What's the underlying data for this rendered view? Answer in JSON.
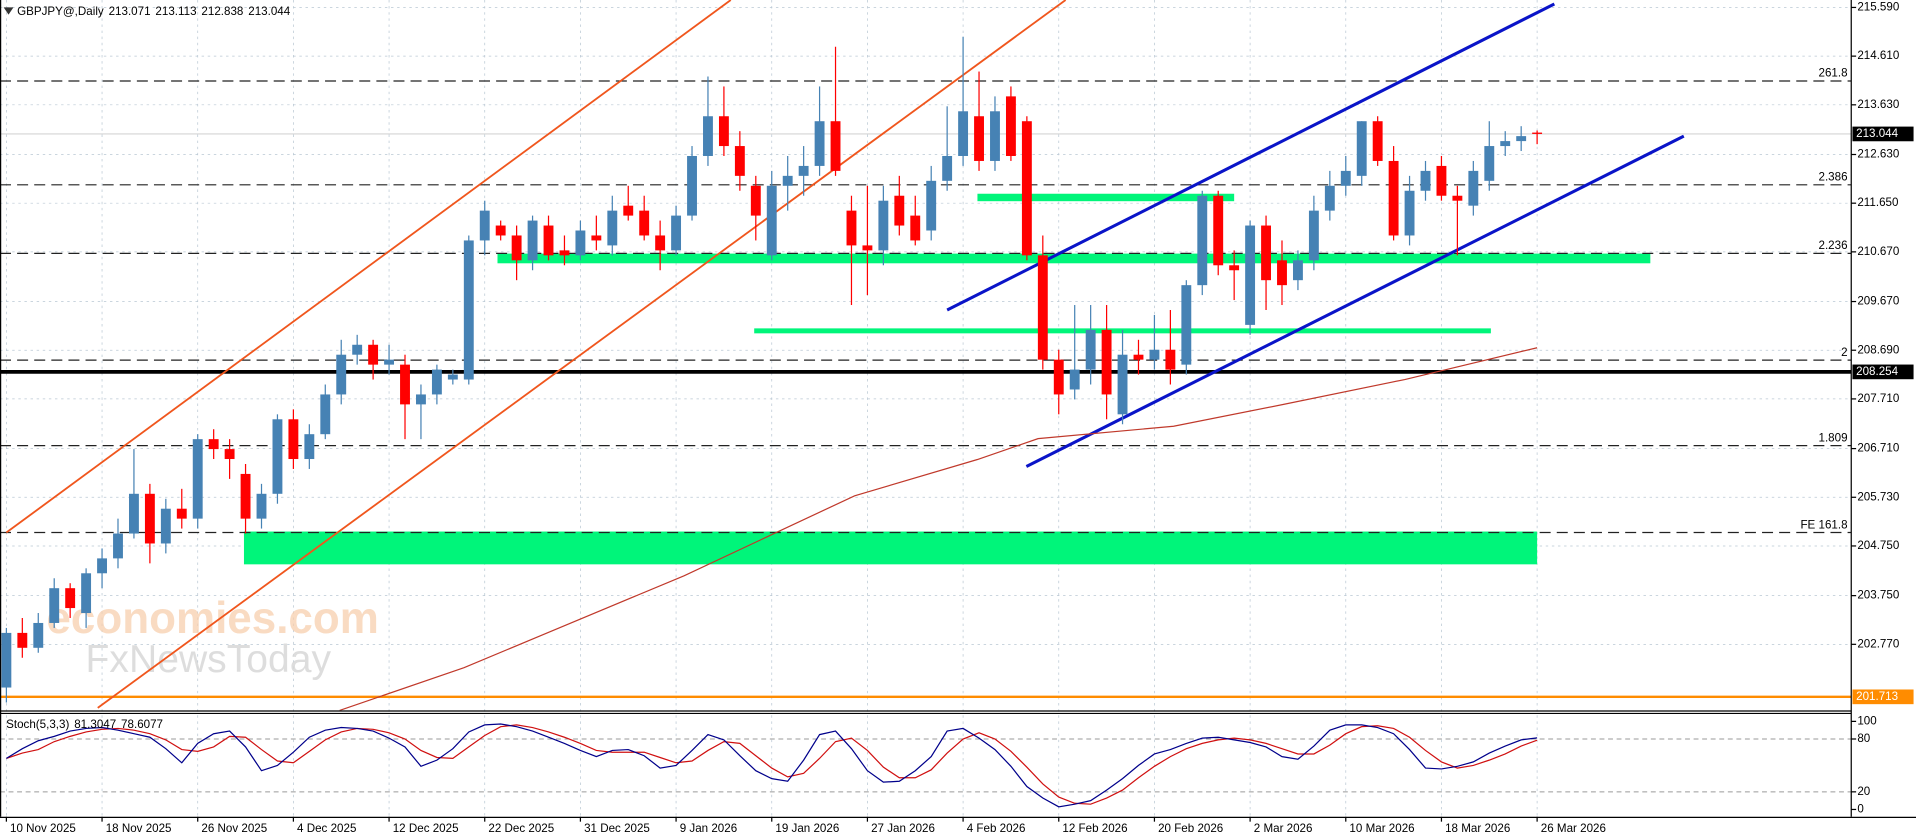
{
  "chart_data": {
    "type": "candlestick",
    "title": "GBPJPY@,Daily",
    "open": [
      201.9,
      203.0,
      202.7,
      203.2,
      203.9,
      203.4,
      204.2,
      204.5,
      205.0,
      205.8,
      204.8,
      205.5,
      205.3,
      206.9,
      206.7,
      206.2,
      205.3,
      205.8,
      207.3,
      206.5,
      207.0,
      207.8,
      208.6,
      208.8,
      208.4,
      208.4,
      207.6,
      207.8,
      208.1,
      208.1,
      210.9,
      211.2,
      211.0,
      210.5,
      211.2,
      210.7,
      210.6,
      211.0,
      210.8,
      211.6,
      211.5,
      211.0,
      210.7,
      211.4,
      212.6,
      213.4,
      212.8,
      212.0,
      210.6,
      212.0,
      212.2,
      212.4,
      213.3,
      211.5,
      210.8,
      210.7,
      211.8,
      211.4,
      211.1,
      212.1,
      212.6,
      213.4,
      212.5,
      213.8,
      213.3,
      210.6,
      208.5,
      207.9,
      208.3,
      209.1,
      207.4,
      208.6,
      208.5,
      208.7,
      208.4,
      210.0,
      211.8,
      210.4,
      209.2,
      211.2,
      210.5,
      210.1,
      210.5,
      211.5,
      212.0,
      212.2,
      213.3,
      212.5,
      211.0,
      211.9,
      212.4,
      211.8,
      211.6,
      212.1,
      212.8,
      212.9,
      213.071
    ],
    "high": [
      203.1,
      203.3,
      203.4,
      204.1,
      204.0,
      204.3,
      204.7,
      205.3,
      206.7,
      206.0,
      205.7,
      205.9,
      207.0,
      207.1,
      206.9,
      206.4,
      206.0,
      207.4,
      207.5,
      207.2,
      208.0,
      208.9,
      209.0,
      208.9,
      208.8,
      208.6,
      208.0,
      208.4,
      208.3,
      211.0,
      211.7,
      211.3,
      211.2,
      211.4,
      211.4,
      211.0,
      211.3,
      211.4,
      211.8,
      212.0,
      211.8,
      211.3,
      211.6,
      212.8,
      214.2,
      214.0,
      213.1,
      212.2,
      212.3,
      212.6,
      212.8,
      214.0,
      214.8,
      211.8,
      212.0,
      212.0,
      212.2,
      211.8,
      212.4,
      213.6,
      215.0,
      214.3,
      213.8,
      214.0,
      213.4,
      211.0,
      208.7,
      209.6,
      209.6,
      209.6,
      209.1,
      208.9,
      209.4,
      209.5,
      210.1,
      211.9,
      211.9,
      210.7,
      211.3,
      211.4,
      210.9,
      210.7,
      211.8,
      212.3,
      212.6,
      213.3,
      213.4,
      212.8,
      212.2,
      212.5,
      212.6,
      212.0,
      212.5,
      213.3,
      213.1,
      213.2,
      213.113
    ],
    "low": [
      201.6,
      202.5,
      202.6,
      203.1,
      203.3,
      203.1,
      203.9,
      204.3,
      204.9,
      204.4,
      204.6,
      205.1,
      205.1,
      206.5,
      206.1,
      205.0,
      205.1,
      205.6,
      206.3,
      206.3,
      206.9,
      207.6,
      208.4,
      208.1,
      208.2,
      206.9,
      206.9,
      207.6,
      208.0,
      208.0,
      210.6,
      210.9,
      210.1,
      210.3,
      210.5,
      210.4,
      210.5,
      210.7,
      210.6,
      211.3,
      210.9,
      210.3,
      210.6,
      211.3,
      212.4,
      212.6,
      211.9,
      210.9,
      210.5,
      211.5,
      211.8,
      212.2,
      212.2,
      209.6,
      209.8,
      210.4,
      211.0,
      210.8,
      210.9,
      211.9,
      212.4,
      212.3,
      212.3,
      212.5,
      210.5,
      208.3,
      207.4,
      207.7,
      208.0,
      207.3,
      207.2,
      208.2,
      208.3,
      208.0,
      208.2,
      209.8,
      210.2,
      209.7,
      209.0,
      209.5,
      209.6,
      209.9,
      210.3,
      211.3,
      211.8,
      212.0,
      212.4,
      210.9,
      210.8,
      211.7,
      211.7,
      210.6,
      211.4,
      211.9,
      212.6,
      212.7,
      212.838
    ],
    "close": [
      203.0,
      202.7,
      203.2,
      203.9,
      203.5,
      204.2,
      204.5,
      205.0,
      205.8,
      204.8,
      205.5,
      205.3,
      206.9,
      206.7,
      206.5,
      205.3,
      205.8,
      207.3,
      206.5,
      207.0,
      207.8,
      208.6,
      208.8,
      208.4,
      208.5,
      207.6,
      207.8,
      208.3,
      208.2,
      210.9,
      211.5,
      211.0,
      210.5,
      211.3,
      210.6,
      210.6,
      211.1,
      210.9,
      211.5,
      211.4,
      211.0,
      210.7,
      211.4,
      212.6,
      213.4,
      212.8,
      212.2,
      211.4,
      212.0,
      212.2,
      212.4,
      213.3,
      212.3,
      210.8,
      210.7,
      211.7,
      211.2,
      210.9,
      212.1,
      212.6,
      213.5,
      212.5,
      213.5,
      212.6,
      210.6,
      208.5,
      207.8,
      208.3,
      209.1,
      207.8,
      208.6,
      208.5,
      208.7,
      208.3,
      210.0,
      211.8,
      210.4,
      210.3,
      211.2,
      210.1,
      210.0,
      210.5,
      211.5,
      212.0,
      212.3,
      213.3,
      212.5,
      211.0,
      211.9,
      212.3,
      211.8,
      211.7,
      212.3,
      212.8,
      212.9,
      213.0,
      213.044
    ],
    "up_color": "#4682b4",
    "down_color": "#ff0000",
    "xlim": [
      -0.4,
      115.7
    ],
    "xticks": [
      {
        "value": 0,
        "label": "10 Nov 2025"
      },
      {
        "value": 6,
        "label": "18 Nov 2025"
      },
      {
        "value": 12,
        "label": "26 Nov 2025"
      },
      {
        "value": 18,
        "label": "4 Dec 2025"
      },
      {
        "value": 24,
        "label": "12 Dec 2025"
      },
      {
        "value": 30,
        "label": "22 Dec 2025"
      },
      {
        "value": 36,
        "label": "31 Dec 2025"
      },
      {
        "value": 42,
        "label": "9 Jan 2026"
      },
      {
        "value": 48,
        "label": "19 Jan 2026"
      },
      {
        "value": 54,
        "label": "27 Jan 2026"
      },
      {
        "value": 60,
        "label": "4 Feb 2026"
      },
      {
        "value": 66,
        "label": "12 Feb 2026"
      },
      {
        "value": 72,
        "label": "20 Feb 2026"
      },
      {
        "value": 78,
        "label": "2 Mar 2026"
      },
      {
        "value": 84,
        "label": "10 Mar 2026"
      },
      {
        "value": 90,
        "label": "18 Mar 2026"
      },
      {
        "value": 96,
        "label": "26 Mar 2026"
      }
    ],
    "ylim": [
      201.44,
      215.74
    ],
    "yticks": [
      {
        "value": 215.59,
        "label": "215.590"
      },
      {
        "value": 214.61,
        "label": "214.610"
      },
      {
        "value": 213.63,
        "label": "213.630"
      },
      {
        "value": 212.63,
        "label": "212.630"
      },
      {
        "value": 211.65,
        "label": "211.650"
      },
      {
        "value": 210.67,
        "label": "210.670"
      },
      {
        "value": 209.67,
        "label": "209.670"
      },
      {
        "value": 208.69,
        "label": "208.690"
      },
      {
        "value": 207.71,
        "label": "207.710"
      },
      {
        "value": 206.71,
        "label": "206.710"
      },
      {
        "value": 205.73,
        "label": "205.730"
      },
      {
        "value": 204.75,
        "label": "204.750"
      },
      {
        "value": 203.75,
        "label": "203.750"
      },
      {
        "value": 202.77,
        "label": "202.770"
      }
    ],
    "grid": true,
    "price_lines": [
      {
        "value": 208.254,
        "color": "#000000"
      },
      {
        "value": 201.713,
        "color": "#ff8c00"
      }
    ],
    "fib_levels": [
      {
        "value": 214.11,
        "label": "261.8"
      },
      {
        "value": 212.02,
        "label": "2.386"
      },
      {
        "value": 210.64,
        "label": "2.236"
      },
      {
        "value": 208.49,
        "label": "2"
      },
      {
        "value": 206.77,
        "label": "1.809"
      },
      {
        "value": 205.02,
        "label": "FE 161.8"
      }
    ],
    "zones": [
      {
        "x": [
          30.8,
          103.1
        ],
        "y": [
          210.635,
          210.44
        ],
        "color": "#00f57a"
      },
      {
        "x": [
          60.9,
          77.0
        ],
        "y": [
          211.84,
          211.69
        ],
        "color": "#00f57a"
      },
      {
        "x": [
          46.9,
          93.1
        ],
        "y": [
          209.13,
          209.03
        ],
        "color": "#00f57a"
      },
      {
        "x": [
          14.9,
          96.0
        ],
        "y": [
          205.04,
          204.38
        ],
        "color": "#00f57a"
      }
    ],
    "trendlines": [
      {
        "x": [
          0,
          45.43
        ],
        "y": [
          205.02,
          215.74
        ],
        "color": "#f0561d"
      },
      {
        "x": [
          5.73,
          66.43
        ],
        "y": [
          201.49,
          215.74
        ],
        "color": "#f0561d"
      },
      {
        "x": [
          59.0,
          97.08
        ],
        "y": [
          209.5,
          215.66
        ],
        "color": "#0a14c8"
      },
      {
        "x": [
          63.97,
          105.2
        ],
        "y": [
          206.35,
          213.0
        ],
        "color": "#0a14c8"
      }
    ],
    "ma": {
      "x": [
        20.9,
        28.7,
        42.5,
        53.2,
        60.9,
        64.7,
        73.2,
        80.1,
        87.7,
        96
      ],
      "y": [
        201.44,
        202.3,
        204.15,
        205.76,
        206.49,
        206.91,
        207.16,
        207.6,
        208.1,
        208.74
      ],
      "color": "#c0392b"
    },
    "stoch": {
      "title": "Stoch(5,3,3)",
      "main": [
        58,
        69,
        78,
        83,
        89,
        92,
        93,
        90,
        86,
        82,
        69,
        53,
        75,
        86,
        89,
        71,
        44,
        50,
        65,
        82,
        90,
        93,
        92,
        89,
        81,
        71,
        49,
        56,
        69,
        88,
        96,
        97,
        94,
        89,
        82,
        75,
        67,
        60,
        67,
        68,
        61,
        47,
        50,
        67,
        85,
        79,
        61,
        44,
        35,
        32,
        56,
        85,
        89,
        69,
        44,
        31,
        32,
        44,
        60,
        89,
        92,
        81,
        68,
        49,
        26,
        13,
        3,
        6,
        10,
        22,
        35,
        50,
        63,
        68,
        75,
        81,
        82,
        79,
        76,
        71,
        60,
        57,
        72,
        90,
        96,
        96,
        93,
        86,
        68,
        47,
        46,
        49,
        54,
        64,
        72,
        79,
        81.3047
      ],
      "signal": [
        58,
        64,
        68,
        77,
        83,
        88,
        91,
        92,
        90,
        86,
        79,
        68,
        66,
        71,
        83,
        82,
        68,
        55,
        53,
        66,
        79,
        88,
        92,
        91,
        87,
        80,
        67,
        59,
        58,
        71,
        84,
        94,
        96,
        93,
        88,
        82,
        75,
        67,
        65,
        65,
        65,
        59,
        53,
        55,
        67,
        77,
        75,
        61,
        47,
        37,
        41,
        58,
        77,
        81,
        67,
        48,
        36,
        36,
        45,
        64,
        80,
        87,
        80,
        66,
        48,
        29,
        14,
        7,
        6,
        13,
        22,
        36,
        49,
        60,
        69,
        75,
        79,
        81,
        79,
        75,
        69,
        63,
        63,
        73,
        86,
        94,
        95,
        92,
        82,
        67,
        54,
        47,
        50,
        56,
        63,
        72,
        78.6077
      ],
      "main_color": "#00008b",
      "signal_color": "#d01010",
      "ylim": [
        -8.3,
        109.7
      ],
      "yticks": [
        100,
        80,
        20,
        0
      ],
      "levels": [
        20,
        80
      ]
    }
  },
  "watermark": [
    "economies.com",
    "FxNewsToday"
  ]
}
